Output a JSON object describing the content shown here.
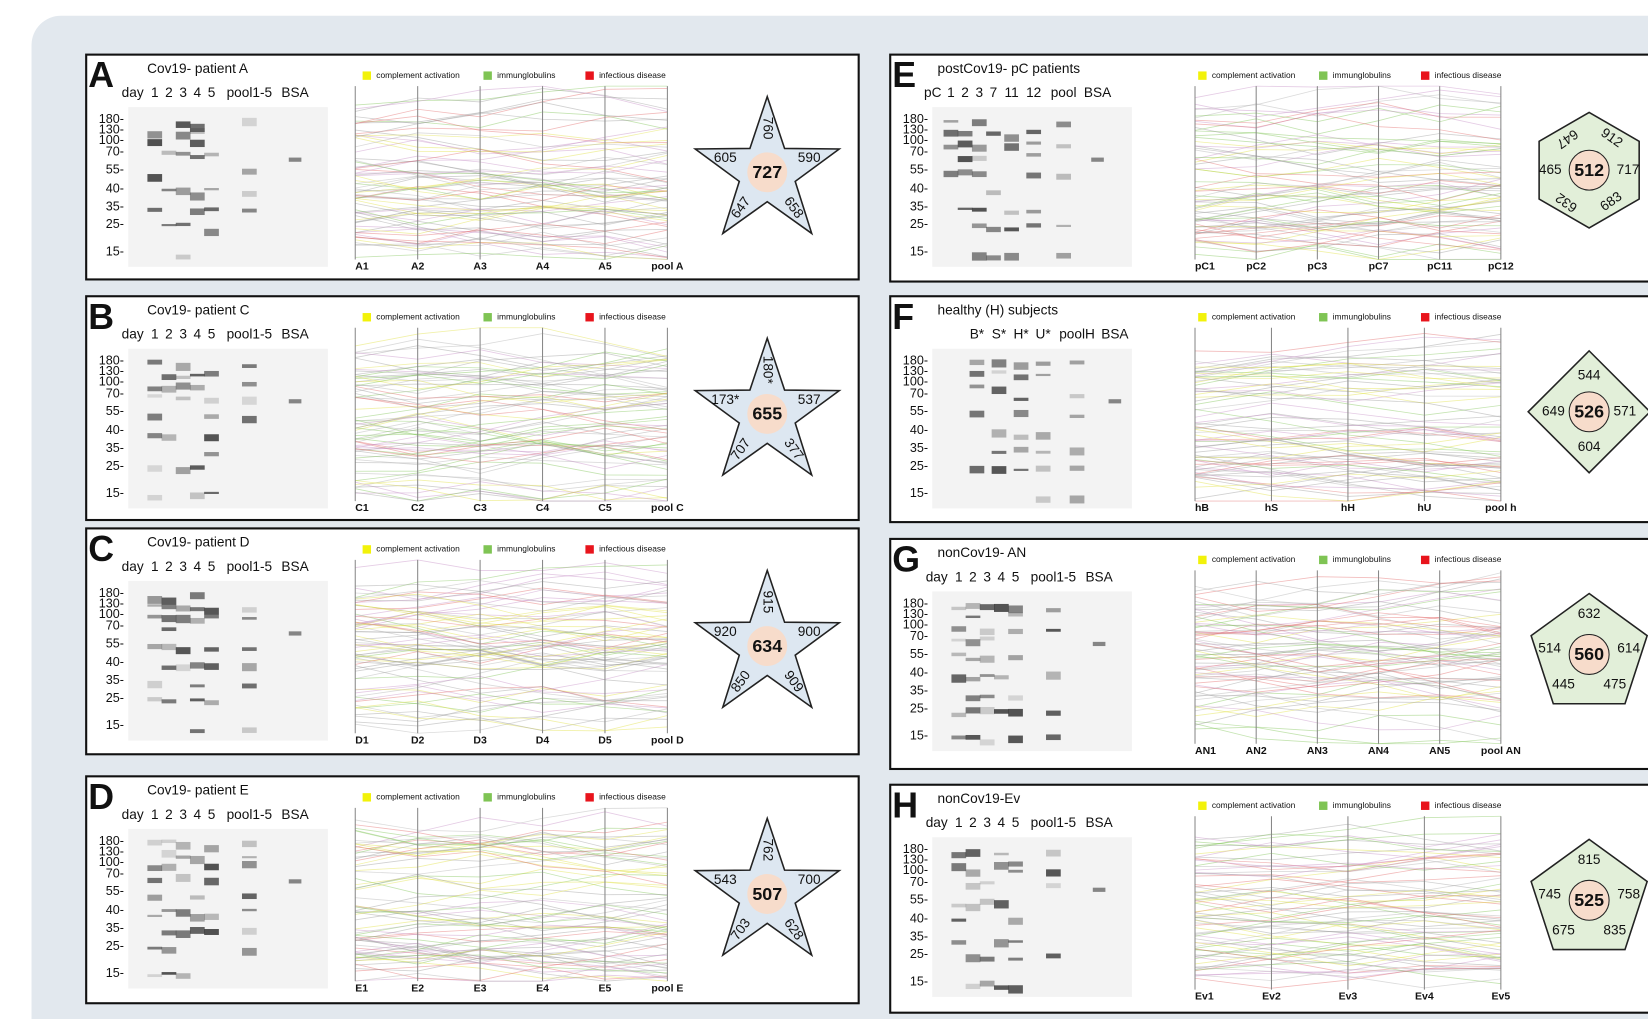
{
  "markers": [
    "180-",
    "130-",
    "100-",
    "70-",
    "55-",
    "40-",
    "35-",
    "25-",
    "15-"
  ],
  "legend": [
    {
      "label": "complement activation",
      "color": "#f2f20a"
    },
    {
      "label": "immunglobulins",
      "color": "#7fc454"
    },
    {
      "label": "infectious disease",
      "color": "#e8141c"
    }
  ],
  "panels": [
    {
      "letter": "A",
      "title": "Cov19- patient A",
      "lanes": [
        "day",
        "1",
        "2",
        "3",
        "4",
        "5",
        "pool1-5",
        "BSA"
      ],
      "axis_labels": [
        "A1",
        "A2",
        "A3",
        "A4",
        "A5",
        "pool A"
      ],
      "center": "727",
      "outer": [
        "760",
        "590",
        "658",
        "647",
        "605"
      ]
    },
    {
      "letter": "B",
      "title": "Cov19- patient C",
      "lanes": [
        "day",
        "1",
        "2",
        "3",
        "4",
        "5",
        "pool1-5",
        "BSA"
      ],
      "axis_labels": [
        "C1",
        "C2",
        "C3",
        "C4",
        "C5",
        "pool C"
      ],
      "center": "655",
      "outer": [
        "180*",
        "537",
        "377",
        "707",
        "173*"
      ]
    },
    {
      "letter": "C",
      "title": "Cov19- patient D",
      "lanes": [
        "day",
        "1",
        "2",
        "3",
        "4",
        "5",
        "pool1-5",
        "BSA"
      ],
      "axis_labels": [
        "D1",
        "D2",
        "D3",
        "D4",
        "D5",
        "pool D"
      ],
      "center": "634",
      "outer": [
        "915",
        "900",
        "909",
        "850",
        "920"
      ]
    },
    {
      "letter": "D",
      "title": "Cov19- patient E",
      "lanes": [
        "day",
        "1",
        "2",
        "3",
        "4",
        "5",
        "pool1-5",
        "BSA"
      ],
      "axis_labels": [
        "E1",
        "E2",
        "E3",
        "E4",
        "E5",
        "pool E"
      ],
      "center": "507",
      "outer": [
        "762",
        "700",
        "628",
        "703",
        "543"
      ]
    },
    {
      "letter": "E",
      "title": "postCov19- pC patients",
      "lanes": [
        "pC",
        "1",
        "2",
        "3",
        "7",
        "11",
        "12",
        "pool",
        "BSA"
      ],
      "axis_labels": [
        "pC1",
        "pC2",
        "pC3",
        "pC7",
        "pC11",
        "pC12"
      ],
      "center": "512",
      "outer": [
        "647",
        "912",
        "717",
        "683",
        "632",
        "465"
      ]
    },
    {
      "letter": "F",
      "title": "healthy (H) subjects",
      "lanes": [
        "B*",
        "S*",
        "H*",
        "U*",
        "poolH",
        "BSA"
      ],
      "axis_labels": [
        "hB",
        "hS",
        "hH",
        "hU",
        "pool h"
      ],
      "center": "526",
      "outer": [
        "544",
        "571",
        "604",
        "649"
      ]
    },
    {
      "letter": "G",
      "title": "nonCov19- AN",
      "lanes": [
        "day",
        "1",
        "2",
        "3",
        "4",
        "5",
        "pool1-5",
        "BSA"
      ],
      "axis_labels": [
        "AN1",
        "AN2",
        "AN3",
        "AN4",
        "AN5",
        "pool AN"
      ],
      "center": "560",
      "outer": [
        "632",
        "614",
        "475",
        "445",
        "514"
      ]
    },
    {
      "letter": "H",
      "title": "nonCov19-Ev",
      "lanes": [
        "day",
        "1",
        "2",
        "3",
        "4",
        "5",
        "pool1-5",
        "BSA"
      ],
      "axis_labels": [
        "Ev1",
        "Ev2",
        "Ev3",
        "Ev4",
        "Ev5"
      ],
      "center": "525",
      "outer": [
        "815",
        "758",
        "835",
        "675",
        "745"
      ]
    }
  ]
}
